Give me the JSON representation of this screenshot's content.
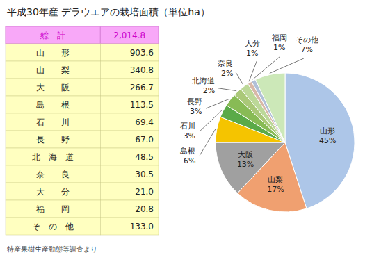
{
  "chart_data": {
    "type": "pie",
    "title": "平成30年産  デラウエアの栽培面積（単位ha）",
    "categories": [
      "山形",
      "山梨",
      "大阪",
      "島根",
      "石川",
      "長野",
      "北海道",
      "奈良",
      "大分",
      "福岡",
      "その他"
    ],
    "values": [
      45,
      17,
      13,
      6,
      3,
      3,
      2,
      2,
      1,
      1,
      7
    ],
    "value_labels": [
      "45%",
      "17%",
      "13%",
      "6%",
      "3%",
      "3%",
      "2%",
      "2%",
      "1%",
      "1%",
      "7%"
    ],
    "colors": [
      "#adc6e8",
      "#f0a070",
      "#a0a0a0",
      "#f5c400",
      "#5aaa48",
      "#88bb55",
      "#aac878",
      "#bcd898",
      "#d8b8a8",
      "#b0c0d8",
      "#cce8b8"
    ],
    "data_labels": true,
    "table": {
      "total_label": "総　計",
      "total_value": 2014.8,
      "total_value_label": "2,014.8",
      "row_labels": [
        "山　　形",
        "山　　梨",
        "大　　阪",
        "島　　根",
        "石　　川",
        "長　　野",
        "北　海　道",
        "奈　　良",
        "大　　分",
        "福　　岡",
        "そ　の　他"
      ],
      "values": [
        903.6,
        340.8,
        266.7,
        113.5,
        69.4,
        67.0,
        48.5,
        30.5,
        21.0,
        20.8,
        133.0
      ],
      "value_labels": [
        "903.6",
        "340.8",
        "266.7",
        "113.5",
        "69.4",
        "67.0",
        "48.5",
        "30.5",
        "21.0",
        "20.8",
        "133.0"
      ]
    },
    "source_note": "特産果樹生産動態等調査より"
  }
}
